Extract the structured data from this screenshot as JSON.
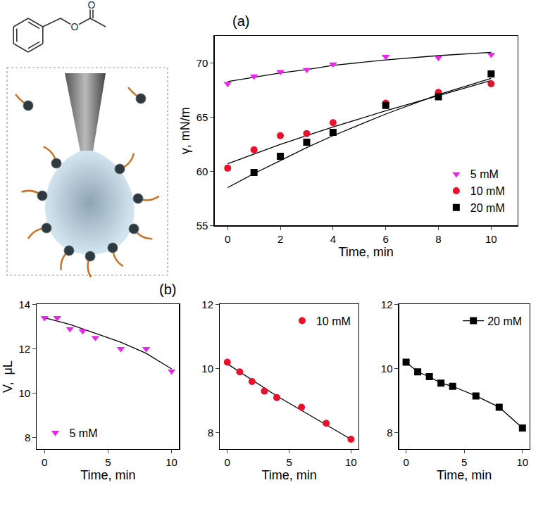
{
  "structure": {
    "atoms": [
      "O",
      "O"
    ]
  },
  "chart_data": [
    {
      "type": "scatter",
      "title": "(a)",
      "x_label": "Time, min",
      "y_label": "γ, mN/m",
      "xlim": [
        -0.5,
        11
      ],
      "ylim": [
        55,
        72.5
      ],
      "xticks": [
        0,
        2,
        4,
        6,
        8,
        10
      ],
      "yticks": [
        55,
        60,
        65,
        70
      ],
      "legend": "lower right",
      "series": [
        {
          "name": "5 mM",
          "color": "#ee22ee",
          "marker": "triangle-down",
          "x": [
            0,
            1,
            2,
            3,
            4,
            6,
            8,
            10
          ],
          "values": [
            68.1,
            68.8,
            69.2,
            69.4,
            69.9,
            70.6,
            70.5,
            70.8
          ],
          "fit_x": [
            0,
            1,
            2,
            3,
            4,
            6,
            8,
            10
          ],
          "fit": [
            68.3,
            68.7,
            69.1,
            69.4,
            69.8,
            70.3,
            70.7,
            71.0
          ]
        },
        {
          "name": "10 mM",
          "color": "#e8102a",
          "marker": "circle",
          "x": [
            0,
            1,
            2,
            3,
            4,
            6,
            8,
            10
          ],
          "values": [
            60.3,
            62.0,
            63.3,
            63.5,
            64.5,
            66.3,
            67.3,
            68.1
          ],
          "fit_x": [
            0,
            1,
            2,
            3,
            4,
            6,
            8,
            10
          ],
          "fit": [
            60.7,
            61.6,
            62.5,
            63.3,
            64.1,
            65.6,
            67.0,
            68.4
          ]
        },
        {
          "name": "20 mM",
          "color": "#000000",
          "marker": "square",
          "x": [
            1,
            2,
            3,
            4,
            6,
            8,
            10
          ],
          "values": [
            59.9,
            61.4,
            62.7,
            63.6,
            66.1,
            66.9,
            69.0
          ],
          "fit_x": [
            0,
            1,
            2,
            3,
            4,
            6,
            8,
            10
          ],
          "fit": [
            58.5,
            59.8,
            61.0,
            62.2,
            63.3,
            65.3,
            67.1,
            68.6
          ]
        }
      ]
    },
    {
      "type": "scatter",
      "title": "(b)",
      "x_label": "Time, min",
      "y_label": "V,  μL",
      "xlim": [
        -0.6,
        10.6
      ],
      "ylim": [
        7.5,
        14
      ],
      "xticks": [
        0,
        5,
        10
      ],
      "yticks": [
        8,
        10,
        12,
        14
      ],
      "legend": "lower left",
      "series": [
        {
          "name": "5 mM",
          "color": "#ee22ee",
          "marker": "triangle-down",
          "x": [
            0,
            1,
            2,
            3,
            4,
            6,
            8,
            10
          ],
          "values": [
            13.4,
            13.4,
            12.9,
            12.8,
            12.5,
            12.0,
            12.0,
            11.0
          ],
          "fit_x": [
            0,
            1,
            2,
            3,
            4,
            6,
            8,
            10
          ],
          "fit": [
            13.4,
            13.25,
            13.1,
            12.9,
            12.7,
            12.3,
            11.8,
            11.1
          ]
        }
      ]
    },
    {
      "type": "scatter",
      "x_label": "Time, min",
      "xlim": [
        -0.6,
        10.6
      ],
      "ylim": [
        7.5,
        12
      ],
      "xticks": [
        0,
        5,
        10
      ],
      "yticks": [
        8,
        10,
        12
      ],
      "legend": "upper right",
      "series": [
        {
          "name": "10 mM",
          "color": "#e8102a",
          "marker": "circle",
          "x": [
            0,
            1,
            2,
            3,
            4,
            6,
            8,
            10
          ],
          "values": [
            10.2,
            9.9,
            9.6,
            9.3,
            9.1,
            8.8,
            8.3,
            7.8
          ],
          "fit_x": [
            0,
            1,
            2,
            3,
            4,
            6,
            8,
            10
          ],
          "fit": [
            10.15,
            9.9,
            9.65,
            9.4,
            9.15,
            8.7,
            8.25,
            7.8
          ]
        }
      ]
    },
    {
      "type": "scatter",
      "x_label": "Time, min",
      "xlim": [
        -0.6,
        10.6
      ],
      "ylim": [
        7.5,
        12
      ],
      "xticks": [
        0,
        5,
        10
      ],
      "yticks": [
        8,
        10,
        12
      ],
      "legend": "upper right",
      "series": [
        {
          "name": "20 mM",
          "color": "#000000",
          "marker": "square",
          "type": "line",
          "line_style": "solid",
          "x": [
            0,
            1,
            2,
            3,
            4,
            6,
            8,
            10
          ],
          "values": [
            10.2,
            9.9,
            9.75,
            9.55,
            9.45,
            9.15,
            8.8,
            8.15
          ]
        }
      ]
    }
  ]
}
